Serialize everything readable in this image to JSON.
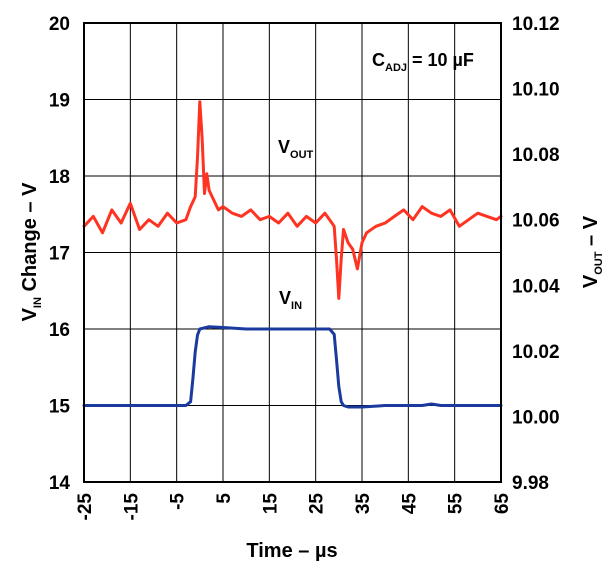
{
  "chart_data": {
    "type": "line",
    "title": "",
    "xlabel": "Time – µs",
    "ylabel_left": {
      "main": "V",
      "sub": "IN",
      "rest": " Change – V"
    },
    "ylabel_right": {
      "main": "V",
      "sub": "OUT",
      "rest": " – V"
    },
    "annotation": {
      "main": "C",
      "sub": "ADJ",
      "rest": " = 10 µF"
    },
    "xlim": [
      -25,
      65
    ],
    "x_ticks": [
      -25,
      -15,
      -5,
      5,
      15,
      25,
      35,
      45,
      55,
      65
    ],
    "x_tick_labels": [
      "-25",
      "-15",
      "-5",
      "5",
      "15",
      "25",
      "35",
      "45",
      "55",
      "65"
    ],
    "ylim_left": [
      14,
      20
    ],
    "y_ticks_left": [
      14,
      15,
      16,
      17,
      18,
      19,
      20
    ],
    "y_tick_labels_left": [
      "14",
      "15",
      "16",
      "17",
      "18",
      "19",
      "20"
    ],
    "ylim_right": [
      9.98,
      10.12
    ],
    "y_ticks_right": [
      9.98,
      10.0,
      10.02,
      10.04,
      10.06,
      10.08,
      10.1,
      10.12
    ],
    "y_tick_labels_right": [
      "9.98",
      "10.00",
      "10.02",
      "10.04",
      "10.06",
      "10.08",
      "10.10",
      "10.12"
    ],
    "grid": true,
    "series": [
      {
        "name": "V_OUT",
        "label": {
          "main": "V",
          "sub": "OUT"
        },
        "axis": "right",
        "color": "#ff3322",
        "x": [
          -25,
          -23,
          -21,
          -19,
          -17,
          -15,
          -13,
          -11,
          -9,
          -7,
          -5,
          -3,
          -2,
          -1,
          -0.5,
          0,
          0.5,
          1,
          1.5,
          2,
          3,
          4,
          5,
          7,
          9,
          11,
          13,
          15,
          17,
          19,
          21,
          23,
          25,
          27,
          28,
          29,
          29.5,
          30,
          30.5,
          31,
          32,
          33,
          34,
          35,
          36,
          38,
          40,
          42,
          44,
          46,
          48,
          50,
          52,
          54,
          56,
          58,
          60,
          62,
          64,
          65
        ],
        "y": [
          10.058,
          10.061,
          10.056,
          10.063,
          10.059,
          10.065,
          10.057,
          10.06,
          10.058,
          10.062,
          10.059,
          10.06,
          10.064,
          10.067,
          10.079,
          10.096,
          10.085,
          10.068,
          10.074,
          10.069,
          10.066,
          10.063,
          10.064,
          10.062,
          10.061,
          10.063,
          10.06,
          10.061,
          10.059,
          10.062,
          10.058,
          10.061,
          10.059,
          10.062,
          10.06,
          10.058,
          10.048,
          10.036,
          10.048,
          10.057,
          10.053,
          10.051,
          10.045,
          10.053,
          10.056,
          10.058,
          10.059,
          10.061,
          10.063,
          10.06,
          10.064,
          10.062,
          10.061,
          10.063,
          10.058,
          10.06,
          10.062,
          10.061,
          10.06,
          10.061
        ]
      },
      {
        "name": "V_IN",
        "label": {
          "main": "V",
          "sub": "IN"
        },
        "axis": "left",
        "color": "#1a3a9e",
        "x": [
          -25,
          -3,
          -2,
          -1.5,
          -1,
          -0.5,
          0,
          2,
          5,
          10,
          20,
          28,
          29,
          29.5,
          30,
          30.5,
          31,
          32,
          35,
          40,
          45,
          48,
          50,
          52,
          55,
          60,
          65
        ],
        "y": [
          15.0,
          15.0,
          15.05,
          15.35,
          15.7,
          15.92,
          16.0,
          16.03,
          16.02,
          16.0,
          16.0,
          16.0,
          15.93,
          15.6,
          15.25,
          15.05,
          15.0,
          14.98,
          14.98,
          15.0,
          15.0,
          15.0,
          15.02,
          15.0,
          15.0,
          15.0,
          15.0
        ]
      }
    ]
  }
}
